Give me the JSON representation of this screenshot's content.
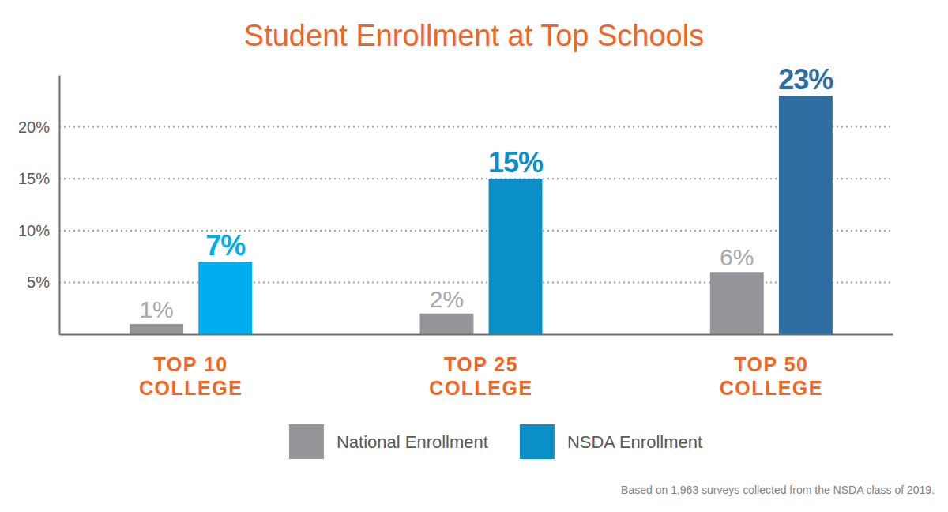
{
  "chart_data": {
    "type": "bar",
    "title": "Student Enrollment at Top Schools",
    "caption": "Based on 1,963 surveys collected from the NSDA class of 2019.",
    "categories": [
      "TOP 10 COLLEGE",
      "TOP 25 COLLEGE",
      "TOP 50 COLLEGE"
    ],
    "series": [
      {
        "name": "National Enrollment",
        "color": "#939598",
        "values": [
          1,
          2,
          6
        ],
        "value_labels": [
          "1%",
          "2%",
          "6%"
        ]
      },
      {
        "name": "NSDA Enrollment",
        "color": "#0a8fc7",
        "colors": [
          "#00aeef",
          "#0a8fc7",
          "#2e6fa3"
        ],
        "values": [
          7,
          15,
          23
        ],
        "value_labels": [
          "7%",
          "15%",
          "23%"
        ]
      }
    ],
    "ylim": [
      0,
      25
    ],
    "yticks": [
      {
        "value": 5,
        "label": "5%"
      },
      {
        "value": 10,
        "label": "10%"
      },
      {
        "value": 15,
        "label": "15%"
      },
      {
        "value": 20,
        "label": "20%"
      }
    ],
    "grid": true,
    "legend": "bottom",
    "data_labels": true
  }
}
